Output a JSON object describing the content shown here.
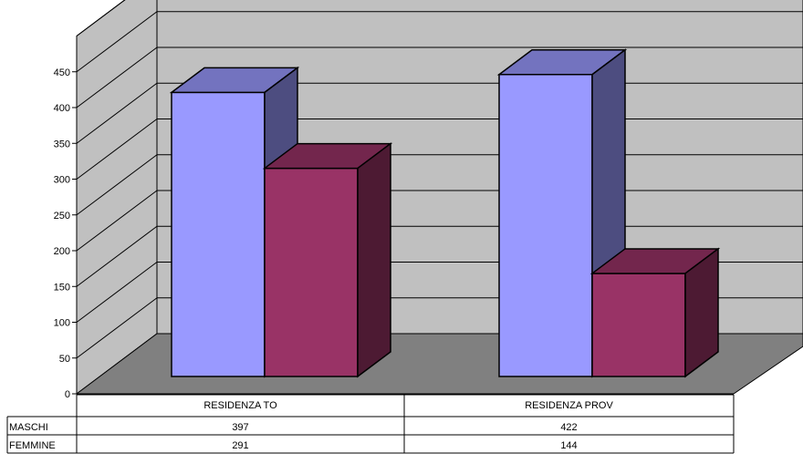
{
  "chart_data": {
    "type": "bar",
    "style": "3d-clustered-column-with-data-table",
    "categories": [
      "RESIDENZA TO",
      "RESIDENZA PROV"
    ],
    "series": [
      {
        "name": "MASCHI",
        "values": [
          397,
          422
        ],
        "color": "#9999ff"
      },
      {
        "name": "FEMMINE",
        "values": [
          291,
          144
        ],
        "color": "#993366"
      }
    ],
    "y_ticks": [
      "0",
      "50",
      "100",
      "150",
      "200",
      "250",
      "300",
      "350",
      "400",
      "450"
    ],
    "ylim": [
      0,
      500
    ],
    "gridlines": true,
    "colors": {
      "wall": "#c0c0c0",
      "floor": "#808080"
    }
  }
}
